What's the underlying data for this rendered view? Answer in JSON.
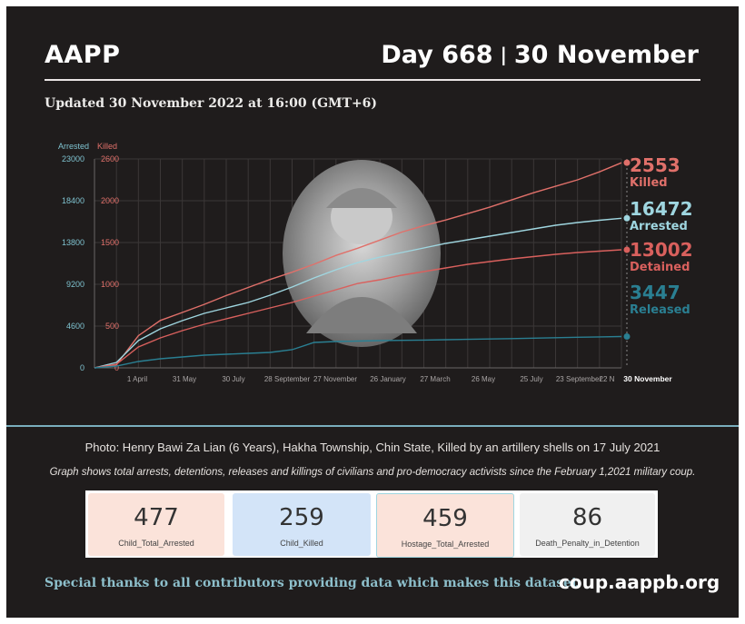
{
  "header": {
    "brand": "AAPP",
    "day": "Day 668",
    "separator": "|",
    "date": "30 November"
  },
  "updated": "Updated 30 November 2022 at 16:00 (GMT+6)",
  "colors": {
    "background": "#1f1c1c",
    "killed": "#e0706a",
    "arrested": "#9fd6e0",
    "detained": "#d9605d",
    "released": "#2a7f92",
    "divider": "#7aaebd"
  },
  "chart_data": {
    "type": "line",
    "x_ticks": [
      "1 April",
      "31 May",
      "30 July",
      "28 September",
      "27 November",
      "26 January",
      "27 March",
      "26 May",
      "25 July",
      "23 September",
      "22 N",
      "30 November"
    ],
    "axes": {
      "left": {
        "label": "Arrested",
        "ticks": [
          "23000",
          "18400",
          "13800",
          "9200",
          "4600",
          "0"
        ],
        "ylim": [
          0,
          23000
        ],
        "color": "#7fc3d0"
      },
      "right": {
        "label": "Killed",
        "ticks": [
          "2600",
          "2000",
          "1500",
          "1000",
          "500",
          "0"
        ],
        "ylim": [
          0,
          2600
        ],
        "color": "#e0706a"
      }
    },
    "grid": true,
    "series": [
      {
        "name": "Killed",
        "axis": "right",
        "color": "#e0706a",
        "final_value": "2553",
        "label": "Killed",
        "values": [
          0,
          40,
          400,
          590,
          690,
          790,
          900,
          1000,
          1100,
          1190,
          1290,
          1400,
          1490,
          1590,
          1690,
          1770,
          1840,
          1920,
          2000,
          2090,
          2180,
          2260,
          2340,
          2440,
          2553
        ]
      },
      {
        "name": "Arrested",
        "axis": "left",
        "color": "#9fd6e0",
        "final_value": "16472",
        "label": "Arrested",
        "values": [
          0,
          600,
          3000,
          4300,
          5200,
          6000,
          6600,
          7200,
          8000,
          8900,
          9900,
          10800,
          11600,
          12200,
          12700,
          13200,
          13700,
          14100,
          14500,
          14900,
          15300,
          15700,
          16000,
          16250,
          16472
        ]
      },
      {
        "name": "Detained",
        "axis": "left",
        "color": "#d9605d",
        "final_value": "13002",
        "label": "Detained",
        "values": [
          0,
          400,
          2300,
          3300,
          4100,
          4800,
          5400,
          6000,
          6600,
          7200,
          7900,
          8600,
          9300,
          9700,
          10200,
          10600,
          11000,
          11400,
          11700,
          12000,
          12250,
          12500,
          12700,
          12850,
          13002
        ]
      },
      {
        "name": "Released",
        "axis": "left",
        "color": "#2a7f92",
        "final_value": "3447",
        "label": "Released",
        "values": [
          0,
          200,
          700,
          1000,
          1200,
          1400,
          1500,
          1600,
          1700,
          2000,
          2800,
          2900,
          2950,
          3000,
          3030,
          3060,
          3100,
          3140,
          3180,
          3220,
          3270,
          3320,
          3370,
          3410,
          3447
        ]
      }
    ]
  },
  "photo_credit": "Photo: Henry Bawi Za Lian (6 Years), Hakha Township, Chin State, Killed by an artillery shells on 17 July  2021",
  "graph_note": "Graph shows total arrests, detentions, releases and killings of civilians and pro-democracy activists since the February 1,2021 military coup.",
  "cards": [
    {
      "value": "477",
      "label": "Child_Total_Arrested",
      "color": "#fbe3da"
    },
    {
      "value": "259",
      "label": "Child_Killed",
      "color": "#d3e4f8"
    },
    {
      "value": "459",
      "label": "Hostage_Total_Arrested",
      "color": "#fbe3da"
    },
    {
      "value": "86",
      "label": "Death_Penalty_in_Detention",
      "color": "#f0f0f0"
    }
  ],
  "footer": {
    "thanks": "Special thanks to all contributors providing data which makes this dataset.",
    "site": "coup.aappb.org"
  }
}
